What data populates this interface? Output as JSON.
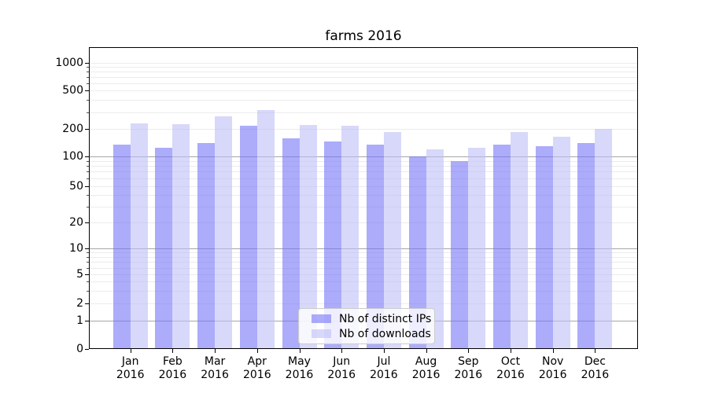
{
  "figure": {
    "title": "farms 2016",
    "background_color": "#ffffff",
    "frame_color": "#000000"
  },
  "chart_data": {
    "type": "bar",
    "title": "farms 2016",
    "categories": [
      "Jan 2016",
      "Feb 2016",
      "Mar 2016",
      "Apr 2016",
      "May 2016",
      "Jun 2016",
      "Jul 2016",
      "Aug 2016",
      "Sep 2016",
      "Oct 2016",
      "Nov 2016",
      "Dec 2016"
    ],
    "series": [
      {
        "name": "Nb of distinct IPs",
        "color": "#7474f7",
        "opacity": 0.6,
        "values": [
          135,
          125,
          140,
          215,
          160,
          145,
          135,
          100,
          90,
          135,
          130,
          140
        ]
      },
      {
        "name": "Nb of downloads",
        "color": "#bebef6",
        "opacity": 0.6,
        "values": [
          230,
          225,
          270,
          315,
          220,
          215,
          185,
          120,
          125,
          185,
          165,
          200
        ]
      }
    ],
    "xlabel": "",
    "ylabel": "",
    "yscale": "symlog",
    "ylim": [
      0,
      1500
    ],
    "yticks": [
      0,
      1,
      2,
      5,
      10,
      20,
      50,
      100,
      200,
      500,
      1000
    ],
    "grid": true,
    "gridline_major_color": "#a6a6a6",
    "gridline_minor_color": "#ececec",
    "legend_position": "lower center"
  }
}
